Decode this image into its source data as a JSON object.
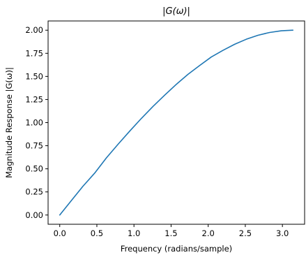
{
  "chart_data": {
    "type": "line",
    "title": "|G(ω)|",
    "xlabel": "Frequency (radians/sample)",
    "ylabel": "Magnitude Response |G(ω)|",
    "xlim": [
      -0.157,
      3.299
    ],
    "ylim": [
      -0.1,
      2.1
    ],
    "xticks": [
      0.0,
      0.5,
      1.0,
      1.5,
      2.0,
      2.5,
      3.0
    ],
    "xtick_labels": [
      "0.0",
      "0.5",
      "1.0",
      "1.5",
      "2.0",
      "2.5",
      "3.0"
    ],
    "yticks": [
      0.0,
      0.25,
      0.5,
      0.75,
      1.0,
      1.25,
      1.5,
      1.75,
      2.0
    ],
    "ytick_labels": [
      "0.00",
      "0.25",
      "0.50",
      "0.75",
      "1.00",
      "1.25",
      "1.50",
      "1.75",
      "2.00"
    ],
    "grid": false,
    "series": [
      {
        "color": "#1f77b4",
        "x": [
          0.0,
          0.1571,
          0.3142,
          0.4712,
          0.6283,
          0.7854,
          0.9425,
          1.0996,
          1.2566,
          1.4137,
          1.5708,
          1.7279,
          1.885,
          2.042,
          2.1991,
          2.3562,
          2.5133,
          2.6704,
          2.8274,
          2.9845,
          3.1416
        ],
        "y": [
          0.0,
          0.1569,
          0.3129,
          0.454,
          0.618,
          0.7654,
          0.908,
          1.0453,
          1.1756,
          1.2975,
          1.4142,
          1.5225,
          1.618,
          1.7102,
          1.782,
          1.8478,
          1.9021,
          1.9452,
          1.9754,
          1.9938,
          2.0
        ]
      }
    ]
  }
}
